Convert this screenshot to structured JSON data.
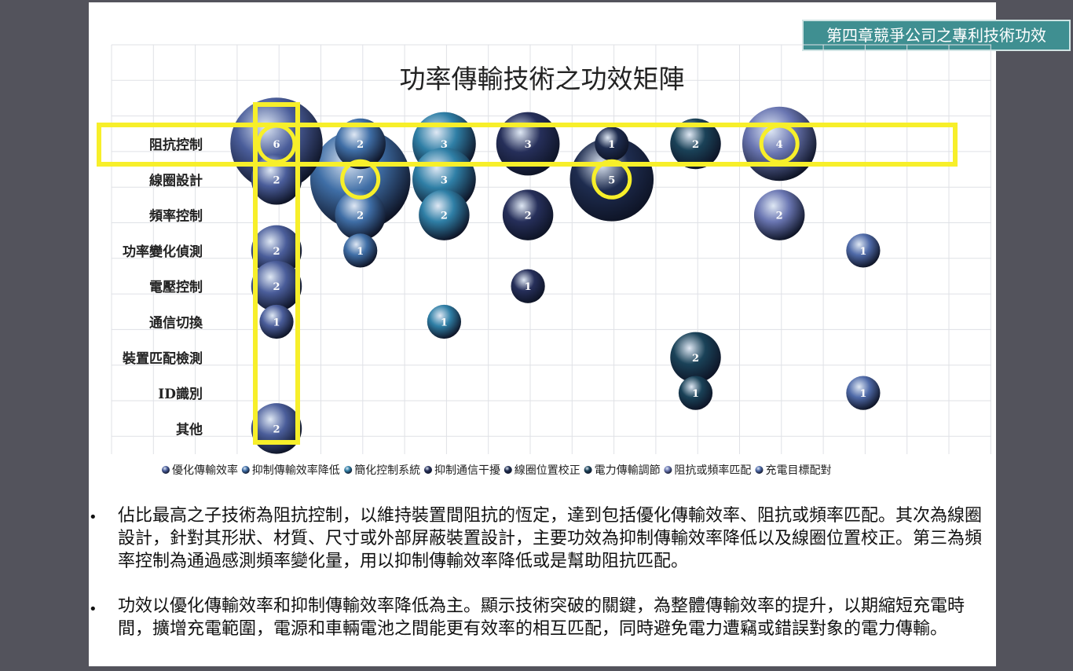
{
  "chapter_tag": "第四章競爭公司之專利技術功效",
  "chart_data": {
    "type": "bubble",
    "title": "功率傳輸技術之功效矩陣",
    "categories_y": [
      "阻抗控制",
      "線圈設計",
      "頻率控制",
      "功率變化偵測",
      "電壓控制",
      "通信切換",
      "裝置匹配檢測",
      "ID識別",
      "其他"
    ],
    "series": [
      {
        "name": "優化傳輸效率",
        "color": "#4a5d9a",
        "points": [
          {
            "y": "阻抗控制",
            "value": 6
          },
          {
            "y": "線圈設計",
            "value": 2
          },
          {
            "y": "功率變化偵測",
            "value": 2
          },
          {
            "y": "電壓控制",
            "value": 2
          },
          {
            "y": "通信切換",
            "value": 1
          },
          {
            "y": "其他",
            "value": 2
          }
        ]
      },
      {
        "name": "抑制傳輸效率降低",
        "color": "#3f6ea6",
        "points": [
          {
            "y": "阻抗控制",
            "value": 2
          },
          {
            "y": "線圈設計",
            "value": 7
          },
          {
            "y": "頻率控制",
            "value": 2
          },
          {
            "y": "功率變化偵測",
            "value": 1
          }
        ]
      },
      {
        "name": "簡化控制系統",
        "color": "#2f7fa6",
        "points": [
          {
            "y": "阻抗控制",
            "value": 3
          },
          {
            "y": "線圈設計",
            "value": 3
          },
          {
            "y": "頻率控制",
            "value": 2
          },
          {
            "y": "通信切換",
            "value": 1
          }
        ]
      },
      {
        "name": "抑制通信干擾",
        "color": "#262f5a",
        "points": [
          {
            "y": "阻抗控制",
            "value": 3
          },
          {
            "y": "頻率控制",
            "value": 2
          },
          {
            "y": "電壓控制",
            "value": 1
          }
        ]
      },
      {
        "name": "線圈位置校正",
        "color": "#1e2c4f",
        "points": [
          {
            "y": "阻抗控制",
            "value": 1
          },
          {
            "y": "線圈設計",
            "value": 5
          }
        ]
      },
      {
        "name": "電力傳輸調節",
        "color": "#1a4258",
        "points": [
          {
            "y": "阻抗控制",
            "value": 2
          },
          {
            "y": "裝置匹配檢測",
            "value": 2
          },
          {
            "y": "ID識別",
            "value": 1
          }
        ]
      },
      {
        "name": "阻抗或頻率匹配",
        "color": "#6a76b2",
        "points": [
          {
            "y": "阻抗控制",
            "value": 4
          },
          {
            "y": "頻率控制",
            "value": 2
          }
        ]
      },
      {
        "name": "充電目標配對",
        "color": "#4f6aa8",
        "points": [
          {
            "y": "功率變化偵測",
            "value": 1
          },
          {
            "y": "ID識別",
            "value": 1
          }
        ]
      }
    ],
    "highlights": {
      "row": "阻抗控制",
      "column": "優化傳輸效率",
      "circled": [
        {
          "series": "抑制傳輸效率降低",
          "y": "線圈設計"
        },
        {
          "series": "線圈位置校正",
          "y": "線圈設計"
        },
        {
          "series": "阻抗或頻率匹配",
          "y": "阻抗控制"
        },
        {
          "series": "優化傳輸效率",
          "y": "阻抗控制"
        }
      ],
      "color": "#f7ef2a"
    },
    "grid": true,
    "legend": "bottom"
  },
  "bullets": [
    "佔比最高之子技術為阻抗控制，以維持裝置間阻抗的恆定，達到包括優化傳輸效率、阻抗或頻率匹配。其次為線圈設計，針對其形狀、材質、尺寸或外部屏蔽裝置設計，主要功效為抑制傳輸效率降低以及線圈位置校正。第三為頻率控制為通過感測頻率變化量，用以抑制傳輸效率降低或是幫助阻抗匹配。",
    "功效以優化傳輸效率和抑制傳輸效率降低為主。顯示技術突破的關鍵，為整體傳輸效率的提升，以期縮短充電時間，擴增充電範圍，電源和車輛電池之間能更有效率的相互匹配，同時避免電力遭竊或錯誤對象的電力傳輸。"
  ]
}
